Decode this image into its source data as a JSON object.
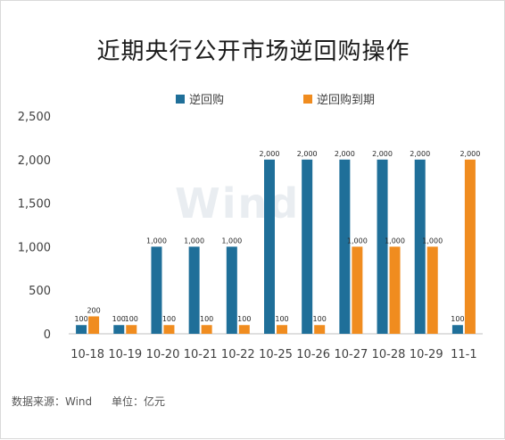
{
  "title": "近期央行公开市场逆回购操作",
  "source_label": "数据来源：Wind",
  "unit_label": "单位：亿元",
  "watermark": "Wind",
  "colors": {
    "repo": "#1f6f99",
    "maturity": "#f08c1f"
  },
  "chart_data": {
    "type": "bar",
    "title": "近期央行公开市场逆回购操作",
    "categories": [
      "10-18",
      "10-19",
      "10-20",
      "10-21",
      "10-22",
      "10-25",
      "10-26",
      "10-27",
      "10-28",
      "10-29",
      "11-1"
    ],
    "series": [
      {
        "name": "逆回购",
        "values": [
          100,
          100,
          1000,
          1000,
          1000,
          2000,
          2000,
          2000,
          2000,
          2000,
          100
        ]
      },
      {
        "name": "逆回购到期",
        "values": [
          200,
          100,
          100,
          100,
          100,
          100,
          100,
          1000,
          1000,
          1000,
          2000
        ]
      }
    ],
    "value_labels": [
      [
        "100",
        "100",
        "1,000",
        "1,000",
        "1,000",
        "2,000",
        "2,000",
        "2,000",
        "2,000",
        "2,000",
        "100"
      ],
      [
        "200",
        "100",
        "100",
        "100",
        "100",
        "100",
        "100",
        "1,000",
        "1,000",
        "1,000",
        "2,000"
      ]
    ],
    "y_ticks": [
      "0",
      "500",
      "1,000",
      "1,500",
      "2,000",
      "2,500"
    ],
    "ylim": [
      0,
      2500
    ],
    "legend_position": "top",
    "grid": false
  }
}
